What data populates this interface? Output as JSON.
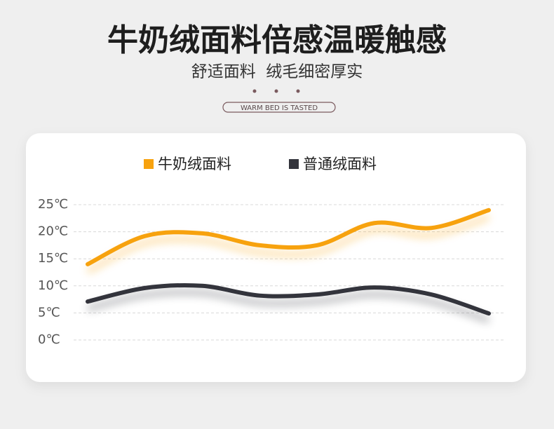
{
  "chart_data": {
    "type": "line",
    "title": "牛奶绒面料倍感温暖触感",
    "subtitle": "舒适面料  绒毛细密厚实",
    "annotations": [
      "WARM BED IS TASTED"
    ],
    "categories": [
      null,
      null,
      null,
      null,
      null,
      null,
      null,
      null
    ],
    "series": [
      {
        "name": "牛奶绒面料",
        "color": "#f7a20e",
        "values": [
          14.0,
          19.2,
          19.7,
          17.5,
          17.5,
          21.6,
          20.7,
          24.0
        ]
      },
      {
        "name": "普通绒面料",
        "color": "#33343c",
        "values": [
          7.1,
          9.6,
          10.0,
          8.2,
          8.4,
          9.7,
          8.4,
          4.9
        ]
      }
    ],
    "ylim": [
      0,
      25
    ],
    "yticks": [
      {
        "value": 0,
        "label": "0℃"
      },
      {
        "value": 5,
        "label": "5℃"
      },
      {
        "value": 10,
        "label": "10℃"
      },
      {
        "value": 15,
        "label": "15℃"
      },
      {
        "value": 20,
        "label": "20℃"
      },
      {
        "value": 25,
        "label": "25℃"
      }
    ],
    "grid": true
  }
}
